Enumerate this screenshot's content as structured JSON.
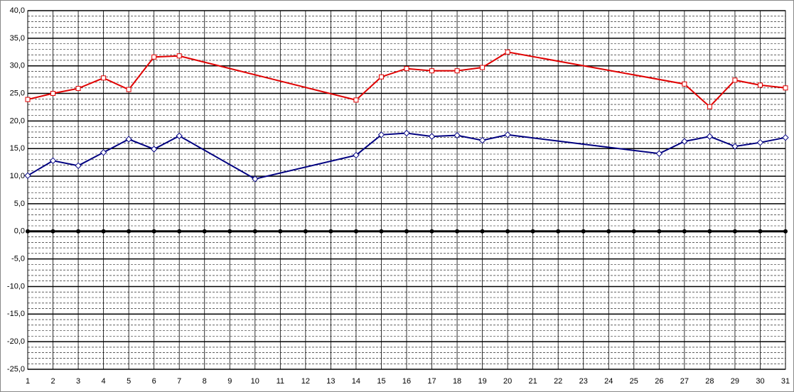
{
  "chart_data": {
    "type": "line",
    "xlim": [
      1,
      31
    ],
    "xticks": [
      1,
      2,
      3,
      4,
      5,
      6,
      7,
      8,
      9,
      10,
      11,
      12,
      13,
      14,
      15,
      16,
      17,
      18,
      19,
      20,
      21,
      22,
      23,
      24,
      25,
      26,
      27,
      28,
      29,
      30,
      31
    ],
    "ylim": [
      -25,
      40
    ],
    "yticks": [
      {
        "value": -25,
        "label": "-25,0"
      },
      {
        "value": -20,
        "label": "-20,0"
      },
      {
        "value": -15,
        "label": "-15,0"
      },
      {
        "value": -10,
        "label": "-10,0"
      },
      {
        "value": -5,
        "label": "-5,0"
      },
      {
        "value": 0,
        "label": "0,0"
      },
      {
        "value": 5,
        "label": "5,0"
      },
      {
        "value": 10,
        "label": "10,0"
      },
      {
        "value": 15,
        "label": "15,0"
      },
      {
        "value": 20,
        "label": "20,0"
      },
      {
        "value": 25,
        "label": "25,0"
      },
      {
        "value": 30,
        "label": "30,0"
      },
      {
        "value": 35,
        "label": "35,0"
      },
      {
        "value": 40,
        "label": "40,0"
      }
    ],
    "grid": true,
    "minor_grid_step": 1,
    "series": [
      {
        "color": "#e00000",
        "marker": "square",
        "x": [
          1,
          2,
          3,
          4,
          5,
          6,
          7,
          14,
          15,
          16,
          17,
          18,
          19,
          20,
          27,
          28,
          29,
          30,
          31
        ],
        "values": [
          23.9,
          25.0,
          25.9,
          27.8,
          25.7,
          31.6,
          31.8,
          23.8,
          28.0,
          29.5,
          29.1,
          29.1,
          29.7,
          32.5,
          26.7,
          22.6,
          27.4,
          26.5,
          26.0
        ]
      },
      {
        "color": "#000080",
        "marker": "diamond",
        "x": [
          1,
          2,
          3,
          4,
          5,
          6,
          7,
          10,
          14,
          15,
          16,
          17,
          18,
          19,
          20,
          26,
          27,
          28,
          29,
          30,
          31
        ],
        "values": [
          10.1,
          12.8,
          11.9,
          14.3,
          16.7,
          14.9,
          17.3,
          9.5,
          13.8,
          17.5,
          17.8,
          17.2,
          17.4,
          16.5,
          17.5,
          14.1,
          16.3,
          17.2,
          15.4,
          16.1,
          17.0
        ]
      }
    ]
  }
}
